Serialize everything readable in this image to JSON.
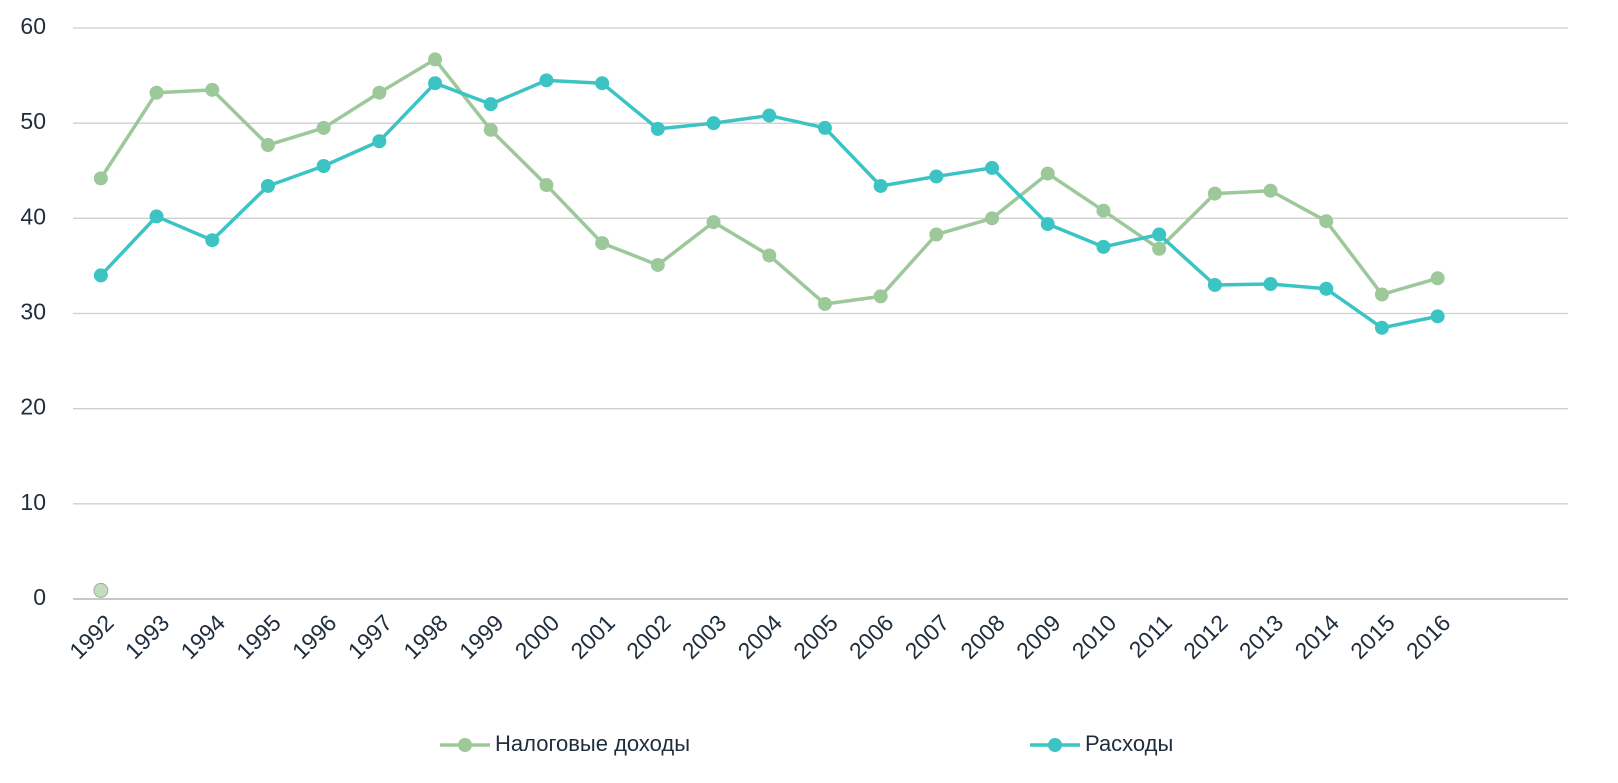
{
  "chart_data": {
    "type": "line",
    "categories": [
      "1992",
      "1993",
      "1994",
      "1995",
      "1996",
      "1997",
      "1998",
      "1999",
      "2000",
      "2001",
      "2002",
      "2003",
      "2004",
      "2005",
      "2006",
      "2007",
      "2008",
      "2009",
      "2010",
      "2011",
      "2012",
      "2013",
      "2014",
      "2015",
      "2016",
      null,
      null
    ],
    "series": [
      {
        "name": "Налоговые доходы",
        "color": "#9dc89a",
        "values": [
          44.2,
          53.2,
          53.5,
          47.7,
          49.5,
          53.2,
          56.7,
          49.3,
          43.5,
          37.4,
          35.1,
          39.6,
          36.1,
          31.0,
          31.8,
          38.3,
          40.0,
          44.7,
          40.8,
          36.8,
          42.6,
          42.9,
          39.7,
          32.0,
          33.7,
          null,
          null
        ]
      },
      {
        "name": "Расходы",
        "color": "#3cc4c4",
        "values": [
          34.0,
          40.2,
          37.7,
          43.4,
          45.5,
          48.1,
          54.2,
          52.0,
          54.5,
          54.2,
          49.4,
          50.0,
          50.8,
          49.5,
          43.4,
          44.4,
          45.3,
          39.4,
          37.0,
          38.3,
          33.0,
          33.1,
          32.6,
          28.5,
          29.7,
          null,
          null
        ]
      },
      {
        "color": "#c5dcc0",
        "values": [
          0.9,
          null,
          null,
          null,
          null,
          null,
          null,
          null,
          null,
          null,
          null,
          null,
          null,
          null,
          null,
          null,
          null,
          null,
          null,
          null,
          null,
          null,
          null,
          null,
          null,
          null,
          null
        ]
      }
    ],
    "ylim": [
      0,
      60
    ],
    "yticks": [
      0,
      10,
      20,
      30,
      40,
      50,
      60
    ],
    "grid": true,
    "legend": "bottom"
  }
}
